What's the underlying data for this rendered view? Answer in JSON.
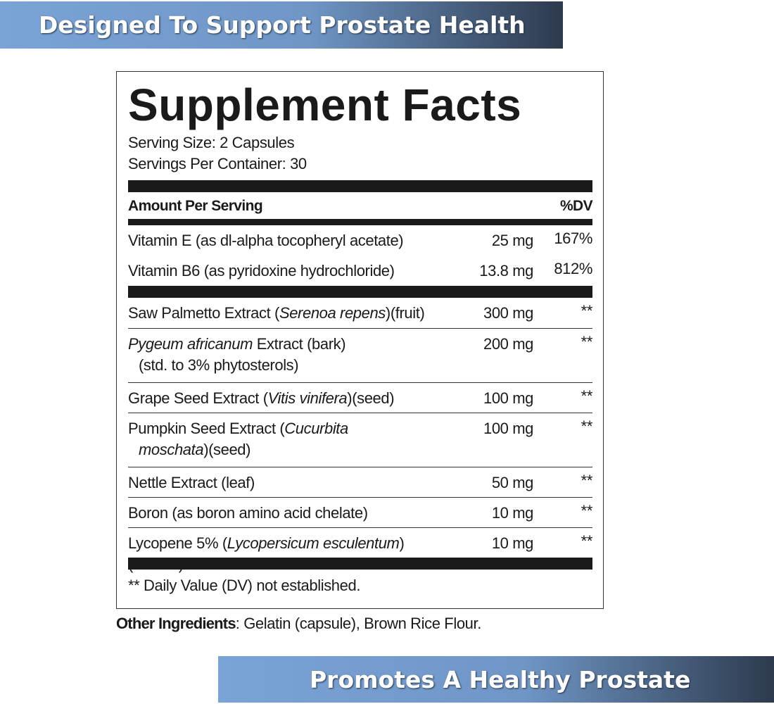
{
  "top_banner": "Designed To Support Prostate Health",
  "panel": {
    "title": "Supplement Facts",
    "serving_size": "Serving Size: 2 Capsules",
    "servings_per_container": "Servings Per Container: 30",
    "header": {
      "amount": "Amount Per Serving",
      "dv": "%DV"
    },
    "groups": [
      {
        "rows": [
          {
            "name": [
              [
                {
                  "text": "Vitamin E (as dl-alpha tocopheryl acetate)"
                }
              ]
            ],
            "amount": "25 mg",
            "dv": "167%"
          },
          {
            "name": [
              [
                {
                  "text": "Vitamin B6 (as pyridoxine hydrochloride)"
                }
              ]
            ],
            "amount": "13.8 mg",
            "dv": "812%"
          }
        ]
      },
      {
        "rows": [
          {
            "name": [
              [
                {
                  "text": "Saw Palmetto Extract ("
                },
                {
                  "text": "Serenoa repens",
                  "italic": true
                },
                {
                  "text": ")(fruit)"
                }
              ]
            ],
            "amount": "300 mg",
            "dv": "**"
          },
          {
            "name": [
              [
                {
                  "text": "Pygeum africanum",
                  "italic": true
                },
                {
                  "text": " Extract (bark)"
                }
              ],
              [
                {
                  "text": "(std. to 3% phytosterols)"
                }
              ]
            ],
            "amount": "200 mg",
            "dv": "**"
          },
          {
            "name": [
              [
                {
                  "text": "Grape Seed Extract ("
                },
                {
                  "text": "Vitis vinifera",
                  "italic": true
                },
                {
                  "text": ")(seed)"
                }
              ]
            ],
            "amount": "100 mg",
            "dv": "**"
          },
          {
            "name": [
              [
                {
                  "text": "Pumpkin Seed Extract ("
                },
                {
                  "text": "Cucurbita",
                  "italic": true
                }
              ],
              [
                {
                  "text": "moschata",
                  "italic": true
                },
                {
                  "text": ")(seed)"
                }
              ]
            ],
            "amount": "100 mg",
            "dv": "**"
          },
          {
            "name": [
              [
                {
                  "text": "Nettle Extract (leaf)"
                }
              ]
            ],
            "amount": "50 mg",
            "dv": "**"
          },
          {
            "name": [
              [
                {
                  "text": "Boron (as boron amino acid chelate)"
                }
              ]
            ],
            "amount": "10 mg",
            "dv": "**"
          },
          {
            "name": [
              [
                {
                  "text": "Lycopene 5% ("
                },
                {
                  "text": "Lycopersicum esculentum",
                  "italic": true
                },
                {
                  "text": ")(tomato)"
                }
              ]
            ],
            "amount": "10 mg",
            "dv": "**"
          }
        ]
      }
    ],
    "footnote": "** Daily Value (DV) not established."
  },
  "other_ingredients": {
    "label": "Other Ingredients",
    "text": ": Gelatin (capsule), Brown Rice Flour."
  },
  "bottom_banner": "Promotes A Healthy Prostate"
}
